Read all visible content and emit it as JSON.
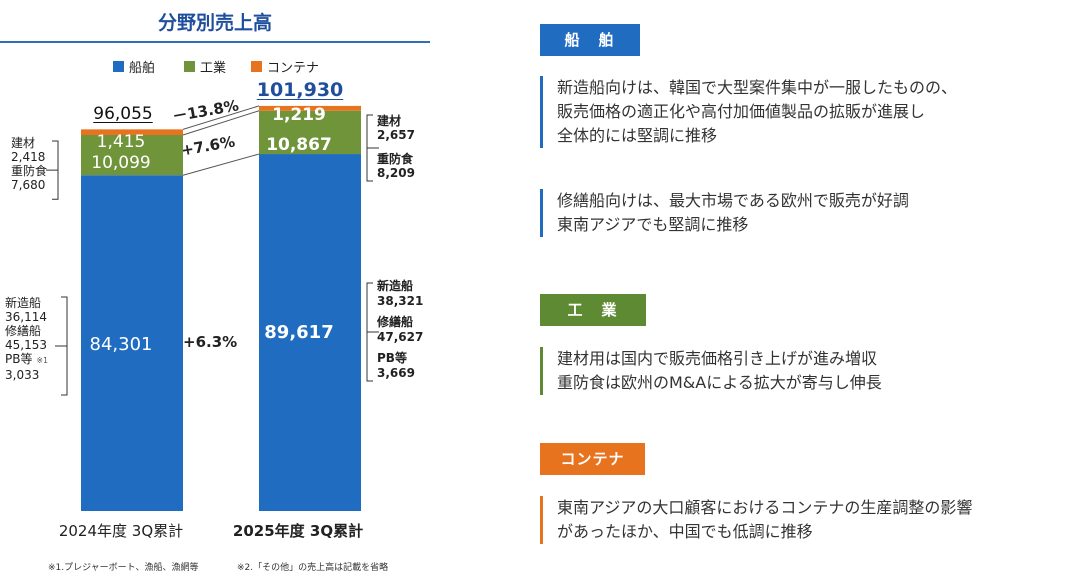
{
  "title": "分野別売上高",
  "legend": [
    {
      "label": "船舶",
      "color": "#1f6cc1"
    },
    {
      "label": "工業",
      "color": "#70943a"
    },
    {
      "label": "コンテナ",
      "color": "#e8731f"
    }
  ],
  "chart_data": {
    "type": "bar",
    "stacked": true,
    "categories": [
      "2024年度 3Q累計",
      "2025年度 3Q累計"
    ],
    "series": [
      {
        "name": "船舶",
        "values": [
          84301,
          89617
        ],
        "labels": [
          "84,301",
          "89,617"
        ],
        "color": "#1f6cc1"
      },
      {
        "name": "工業",
        "values": [
          10099,
          10867
        ],
        "labels": [
          "10,099",
          "10,867"
        ],
        "color": "#70943a"
      },
      {
        "name": "コンテナ",
        "values": [
          1415,
          1219
        ],
        "labels": [
          "1,415",
          "1,219"
        ],
        "color": "#e8731f"
      }
    ],
    "totals": [
      "96,055",
      "101,930"
    ],
    "changes": {
      "total": "－13.8%",
      "industry": "+7.6%",
      "ship": "+6.3%"
    },
    "ylim": [
      0,
      101930
    ]
  },
  "annotations_left": {
    "kenzai_label": "建材",
    "kenzai_value": "2,418",
    "juboshoku_label": "重防食",
    "juboshoku_value": "7,680",
    "shinzosen_label": "新造船",
    "shinzosen_value": "36,114",
    "shuzensen_label": "修繕船",
    "shuzensen_value": "45,153",
    "pb_label": "PB等",
    "pb_note": "※1",
    "pb_value": "3,033"
  },
  "annotations_right": {
    "kenzai_label": "建材",
    "kenzai_value": "2,657",
    "juboshoku_label": "重防食",
    "juboshoku_value": "8,209",
    "shinzosen_label": "新造船",
    "shinzosen_value": "38,321",
    "shuzensen_label": "修繕船",
    "shuzensen_value": "47,627",
    "pb_label": "PB等",
    "pb_value": "3,669"
  },
  "footnote1": "※1.プレジャーボート、漁船、漁網等",
  "footnote2": "※2.「その他」の売上高は記載を省略",
  "sections": [
    {
      "badge": "船　舶",
      "color": "#1f6cc1",
      "lines": [
        "新造船向けは、韓国で大型案件集中が一服したものの、",
        "販売価格の適正化や高付加価値製品の拡販が進展し",
        "全体的には堅調に推移"
      ]
    },
    {
      "color": "#1f6cc1",
      "lines": [
        "修繕船向けは、最大市場である欧州で販売が好調",
        "東南アジアでも堅調に推移"
      ]
    },
    {
      "badge": "工　業",
      "color": "#5e8a34",
      "lines": [
        "建材用は国内で販売価格引き上げが進み増収",
        "重防食は欧州のM&Aによる拡大が寄与し伸長"
      ]
    },
    {
      "badge": "コンテナ",
      "color": "#e8731f",
      "lines": [
        "東南アジアの大口顧客におけるコンテナの生産調整の影響",
        "があったほか、中国でも低調に推移"
      ]
    }
  ]
}
